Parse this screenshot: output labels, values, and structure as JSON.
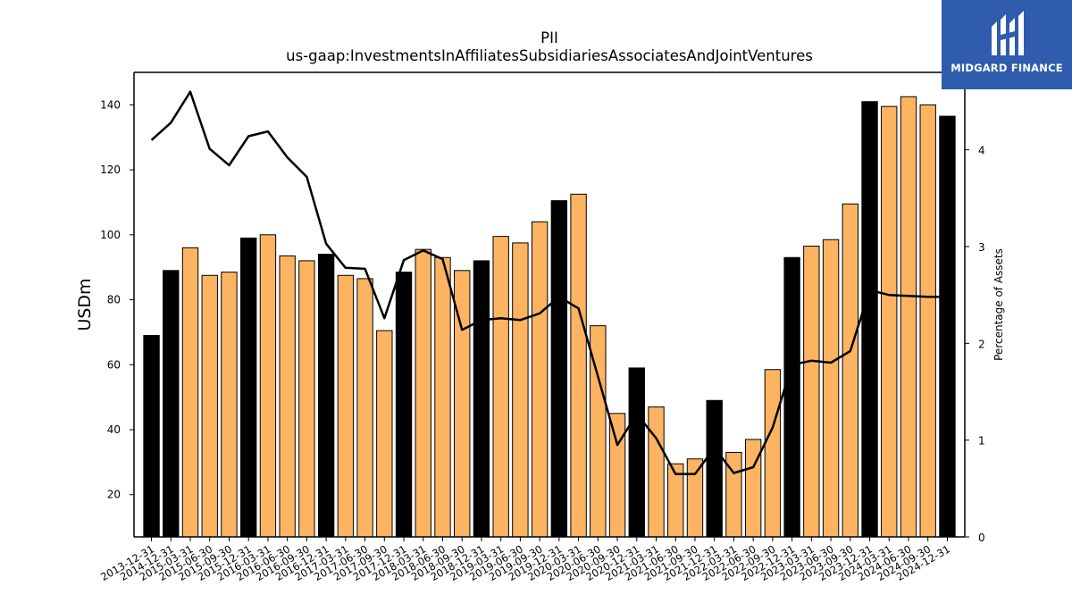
{
  "chart_data": {
    "type": "bar",
    "title": "PII",
    "subtitle": "us-gaap:InvestmentsInAffiliatesSubsidiariesAssociatesAndJointVentures",
    "ylabel": "USDm",
    "y2label": "Percentage of Assets",
    "ylim": [
      7,
      150
    ],
    "y2lim": [
      0,
      4.8
    ],
    "yticks": [
      20,
      40,
      60,
      80,
      100,
      120,
      140
    ],
    "y2ticks": [
      0,
      1,
      2,
      3,
      4
    ],
    "categories": [
      "2013-12-31",
      "2014-12-31",
      "2015-03-31",
      "2015-06-30",
      "2015-09-30",
      "2015-12-31",
      "2016-03-31",
      "2016-06-30",
      "2016-09-30",
      "2016-12-31",
      "2017-03-31",
      "2017-06-30",
      "2017-09-30",
      "2017-12-31",
      "2018-03-31",
      "2018-06-30",
      "2018-09-30",
      "2018-12-31",
      "2019-03-31",
      "2019-06-30",
      "2019-09-30",
      "2019-12-31",
      "2020-03-31",
      "2020-06-30",
      "2020-09-30",
      "2020-12-31",
      "2021-03-31",
      "2021-06-30",
      "2021-09-30",
      "2021-12-31",
      "2022-03-31",
      "2022-06-30",
      "2022-09-30",
      "2022-12-31",
      "2023-03-31",
      "2023-06-30",
      "2023-09-30",
      "2023-12-31",
      "2024-03-31",
      "2024-06-30",
      "2024-09-30",
      "2024-12-31"
    ],
    "series": [
      {
        "type": "bar",
        "values": [
          69,
          89,
          96,
          87.5,
          88.5,
          99,
          100,
          93.5,
          92,
          94,
          87.5,
          86.5,
          70.5,
          88.5,
          95.5,
          93,
          89,
          92,
          99.5,
          97.5,
          104,
          110.5,
          112.5,
          72,
          45,
          59,
          47,
          29.5,
          31,
          49,
          33,
          37,
          58.5,
          93,
          96.5,
          98.5,
          109.5,
          141,
          139.5,
          142.5,
          140,
          136.5
        ],
        "year_end_flags": [
          true,
          true,
          false,
          false,
          false,
          true,
          false,
          false,
          false,
          true,
          false,
          false,
          false,
          true,
          false,
          false,
          false,
          true,
          false,
          false,
          false,
          true,
          false,
          false,
          false,
          true,
          false,
          false,
          false,
          true,
          false,
          false,
          false,
          true,
          false,
          false,
          false,
          true,
          false,
          false,
          false,
          true
        ]
      },
      {
        "type": "line",
        "axis": "right",
        "values": [
          4.1,
          4.28,
          4.6,
          4.01,
          3.84,
          4.14,
          4.19,
          3.92,
          3.72,
          3.03,
          2.78,
          2.77,
          2.26,
          2.86,
          2.96,
          2.87,
          2.14,
          2.24,
          2.26,
          2.24,
          2.31,
          2.48,
          2.36,
          1.66,
          0.95,
          1.27,
          1.02,
          0.65,
          0.65,
          0.92,
          0.66,
          0.72,
          1.13,
          1.78,
          1.82,
          1.8,
          1.92,
          2.55,
          2.5,
          2.49,
          2.48,
          2.48
        ]
      }
    ],
    "colors": {
      "year_end_bar": "#000000",
      "quarter_bar": "#fdb462",
      "bar_edge": "#000000",
      "line": "#000000"
    },
    "grid": false,
    "legend": "none"
  },
  "logo": {
    "text": "MIDGARD FINANCE"
  }
}
